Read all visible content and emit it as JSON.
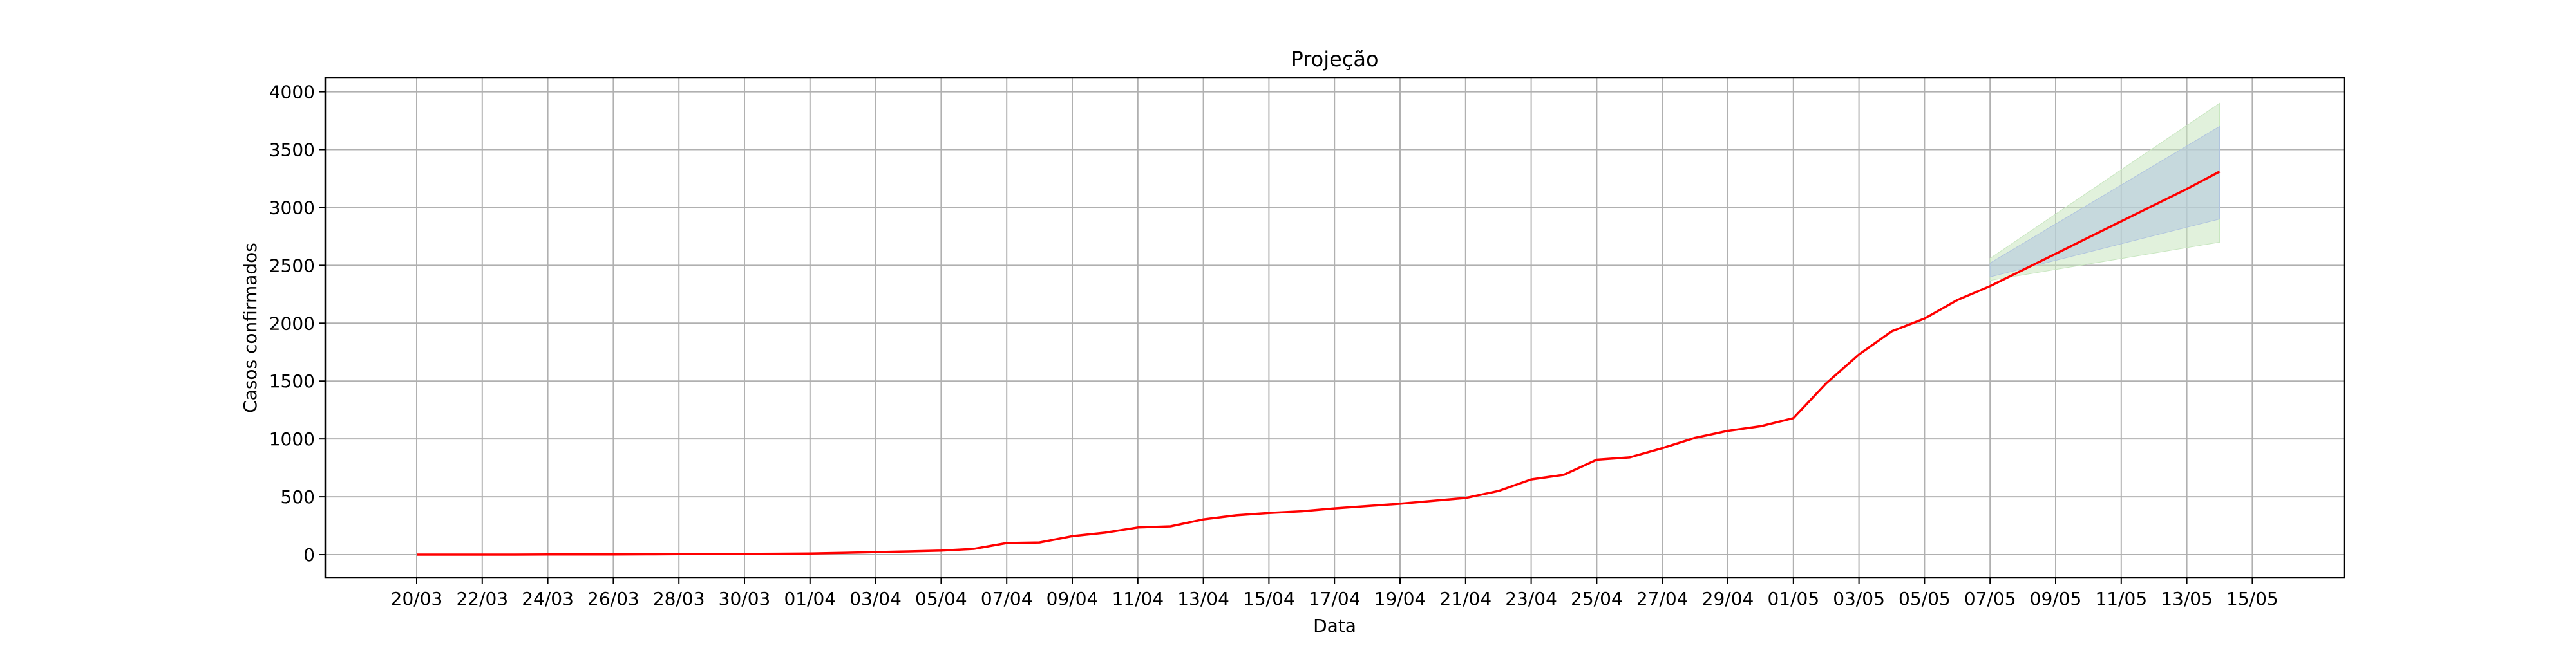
{
  "chart_data": {
    "type": "line",
    "title": "Projeção",
    "xlabel": "Data",
    "ylabel": "Casos confirmados",
    "x_ticks": [
      "20/03",
      "22/03",
      "24/03",
      "26/03",
      "28/03",
      "30/03",
      "01/04",
      "03/04",
      "05/04",
      "07/04",
      "09/04",
      "11/04",
      "13/04",
      "15/04",
      "17/04",
      "19/04",
      "21/04",
      "23/04",
      "25/04",
      "27/04",
      "29/04",
      "01/05",
      "03/05",
      "05/05",
      "07/05",
      "09/05",
      "11/05",
      "13/05",
      "15/05"
    ],
    "y_ticks": [
      "0",
      "500",
      "1000",
      "1500",
      "2000",
      "2500",
      "3000",
      "3500",
      "4000"
    ],
    "ylim": [
      -200,
      4120
    ],
    "grid": true,
    "colors": {
      "series": "#ff0000",
      "inner_band": "#b0c4de",
      "outer_band": "#c8e6c0",
      "grid": "#b0b0b0"
    },
    "series": [
      {
        "values": [
          0,
          0,
          0,
          0,
          1,
          1,
          2,
          3,
          4,
          5,
          6,
          8,
          10,
          15,
          22,
          28,
          35,
          50,
          100,
          105,
          160,
          190,
          235,
          245,
          305,
          340,
          360,
          375,
          400,
          420,
          440,
          465,
          490,
          550,
          650,
          690,
          820,
          840,
          920,
          1010,
          1070,
          1110,
          1180,
          1480,
          1730,
          1930,
          2040,
          2200,
          2320,
          2460,
          2600,
          2740,
          2880,
          3020,
          3160,
          3310
        ]
      }
    ],
    "projection": {
      "start_value": 2460,
      "end_value": 3310,
      "inner_band": {
        "start": [
          2400,
          2520
        ],
        "end": [
          2900,
          3700
        ]
      },
      "outer_band": {
        "start": [
          2370,
          2560
        ],
        "end": [
          2700,
          3900
        ]
      }
    }
  }
}
